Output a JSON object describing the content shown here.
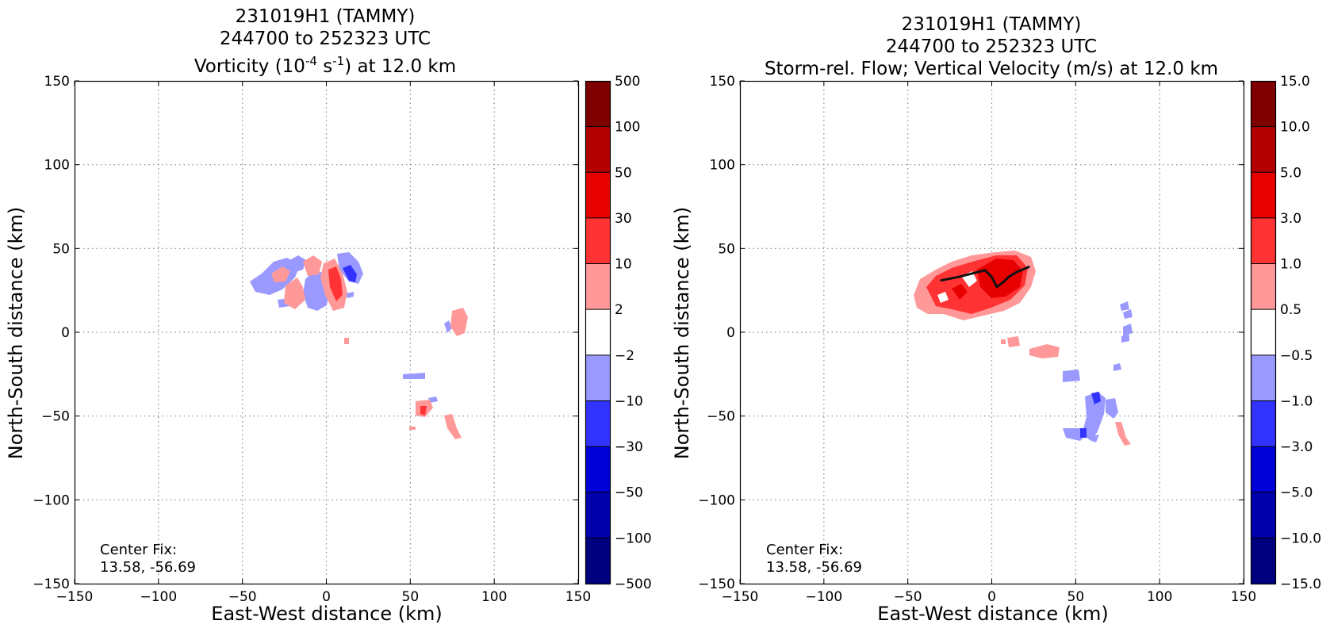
{
  "chart_data": [
    {
      "type": "heatmap",
      "title_lines": [
        "231019H1 (TAMMY)",
        "244700 to 252323 UTC"
      ],
      "title_vort": {
        "pre": "Vorticity (10",
        "sup1": "-4",
        "mid": " s",
        "sup2": "-1",
        "post": ") at 12.0 km"
      },
      "xlabel": "East-West distance (km)",
      "ylabel": "North-South distance (km)",
      "xlim": [
        -150,
        150
      ],
      "ylim": [
        -150,
        150
      ],
      "xticks": [
        -150,
        -100,
        -50,
        0,
        50,
        100,
        150
      ],
      "yticks": [
        -150,
        -100,
        -50,
        0,
        50,
        100,
        150
      ],
      "grid": true,
      "colorbar": {
        "levels": [
          "−500",
          "−100",
          "−50",
          "−30",
          "−10",
          "−2",
          "2",
          "10",
          "30",
          "50",
          "100",
          "500"
        ],
        "colors": [
          "#00007f",
          "#0000ac",
          "#0000d9",
          "#3333ff",
          "#9999ff",
          "#ffffff",
          "#ff9999",
          "#ff3333",
          "#e60000",
          "#b20000",
          "#7f0000"
        ]
      },
      "annotation": [
        "Center Fix:",
        "13.58, -56.69"
      ],
      "features": [
        {
          "x": -30,
          "y": 25,
          "level": "-2 to -10"
        },
        {
          "x": -18,
          "y": 30,
          "level": "-2 to -10"
        },
        {
          "x": -15,
          "y": 40,
          "level": "-2 to -10"
        },
        {
          "x": -5,
          "y": 35,
          "level": "-2 to -10"
        },
        {
          "x": 10,
          "y": 35,
          "level": "-2 to -10"
        },
        {
          "x": 12,
          "y": 30,
          "level": "-10 to -30"
        },
        {
          "x": 80,
          "y": 5,
          "level": "-2 to -10"
        },
        {
          "x": 52,
          "y": -25,
          "level": "-2 to -10"
        },
        {
          "x": -25,
          "y": 32,
          "level": "2 to 10"
        },
        {
          "x": -12,
          "y": 20,
          "level": "2 to 10"
        },
        {
          "x": 8,
          "y": 28,
          "level": "10 to 30"
        },
        {
          "x": 80,
          "y": 8,
          "level": "2 to 10"
        },
        {
          "x": 60,
          "y": -48,
          "level": "2 to 10"
        },
        {
          "x": 58,
          "y": -48,
          "level": "10 to 30"
        },
        {
          "x": 75,
          "y": -55,
          "level": "2 to 10"
        }
      ]
    },
    {
      "type": "heatmap",
      "title_lines": [
        "231019H1 (TAMMY)",
        "244700 to 252323 UTC",
        "Storm-rel. Flow; Vertical Velocity (m/s) at 12.0 km"
      ],
      "xlabel": "East-West distance (km)",
      "ylabel": "North-South distance (km)",
      "xlim": [
        -150,
        150
      ],
      "ylim": [
        -150,
        150
      ],
      "xticks": [
        -150,
        -100,
        -50,
        0,
        50,
        100,
        150
      ],
      "yticks": [
        -150,
        -100,
        -50,
        0,
        50,
        100,
        150
      ],
      "grid": true,
      "colorbar": {
        "levels": [
          "−15.0",
          "−10.0",
          "−5.0",
          "−3.0",
          "−1.0",
          "−0.5",
          "0.5",
          "1.0",
          "3.0",
          "5.0",
          "10.0",
          "15.0"
        ],
        "colors": [
          "#00007f",
          "#0000ac",
          "#0000d9",
          "#3333ff",
          "#9999ff",
          "#ffffff",
          "#ff9999",
          "#ff3333",
          "#e60000",
          "#b20000",
          "#7f0000"
        ]
      },
      "annotation": [
        "Center Fix:",
        "13.58, -56.69"
      ],
      "features": [
        {
          "x": -20,
          "y": 25,
          "level": "0.5 to 1.0"
        },
        {
          "x": -10,
          "y": 22,
          "level": "1.0 to 3.0"
        },
        {
          "x": 10,
          "y": 35,
          "level": "3.0 to 5.0"
        },
        {
          "x": 15,
          "y": 32,
          "level": "1.0 to 3.0"
        },
        {
          "x": 10,
          "y": -5,
          "level": "0.5 to 1.0"
        },
        {
          "x": 35,
          "y": -10,
          "level": "0.5 to 1.0"
        },
        {
          "x": 80,
          "y": 8,
          "level": "-1.0 to -3.0"
        },
        {
          "x": 55,
          "y": -25,
          "level": "-0.5 to -1.0"
        },
        {
          "x": 68,
          "y": -40,
          "level": "-1.0 to -3.0"
        },
        {
          "x": 60,
          "y": -58,
          "level": "-1.0 to -3.0"
        }
      ],
      "flow_line": [
        [
          -30,
          31
        ],
        [
          -20,
          33
        ],
        [
          -8,
          36
        ],
        [
          -4,
          37
        ],
        [
          0,
          33
        ],
        [
          3,
          27
        ],
        [
          7,
          30
        ],
        [
          10,
          33
        ],
        [
          15,
          36
        ],
        [
          22,
          39
        ]
      ]
    }
  ]
}
